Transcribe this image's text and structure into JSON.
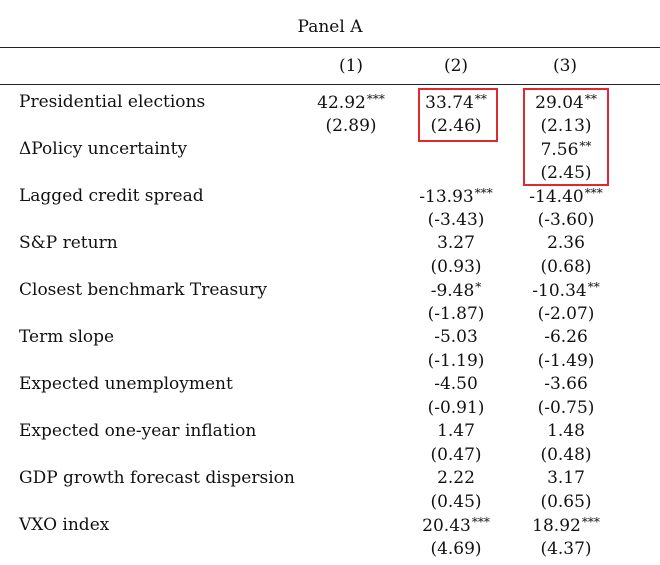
{
  "panel_title": "Panel A",
  "columns": [
    "(1)",
    "(2)",
    "(3)"
  ],
  "rows": [
    {
      "label": "Presidential elections",
      "c1": "42.92",
      "c1s": "***",
      "c1t": "(2.89)",
      "c2": "33.74",
      "c2s": "**",
      "c2t": "(2.46)",
      "c3": "29.04",
      "c3s": "**",
      "c3t": "(2.13)"
    },
    {
      "label": "ΔPolicy uncertainty",
      "c3": "7.56",
      "c3s": "**",
      "c3t": "(2.45)"
    },
    {
      "label": "Lagged credit spread",
      "c2": "-13.93",
      "c2s": "***",
      "c2t": "(-3.43)",
      "c3": "-14.40",
      "c3s": "***",
      "c3t": "(-3.60)"
    },
    {
      "label": "S&P return",
      "c2": "3.27",
      "c2t": "(0.93)",
      "c3": "2.36",
      "c3t": "(0.68)"
    },
    {
      "label": "Closest benchmark Treasury",
      "c2": "-9.48",
      "c2s": "*",
      "c2t": "(-1.87)",
      "c3": "-10.34",
      "c3s": "**",
      "c3t": "(-2.07)"
    },
    {
      "label": "Term slope",
      "c2": "-5.03",
      "c2t": "(-1.19)",
      "c3": "-6.26",
      "c3t": "(-1.49)"
    },
    {
      "label": "Expected unemployment",
      "c2": "-4.50",
      "c2t": "(-0.91)",
      "c3": "-3.66",
      "c3t": "(-0.75)"
    },
    {
      "label": "Expected one-year inflation",
      "c2": "1.47",
      "c2t": "(0.47)",
      "c3": "1.48",
      "c3t": "(0.48)"
    },
    {
      "label": "GDP growth forecast dispersion",
      "c2": "2.22",
      "c2t": "(0.45)",
      "c3": "3.17",
      "c3t": "(0.65)"
    },
    {
      "label": "VXO index",
      "c2": "20.43",
      "c2s": "***",
      "c2t": "(4.69)",
      "c3": "18.92",
      "c3s": "***",
      "c3t": "(4.37)"
    }
  ],
  "colors": {
    "highlight": "#e0282e",
    "text": "#111111",
    "rule": "#222222"
  }
}
